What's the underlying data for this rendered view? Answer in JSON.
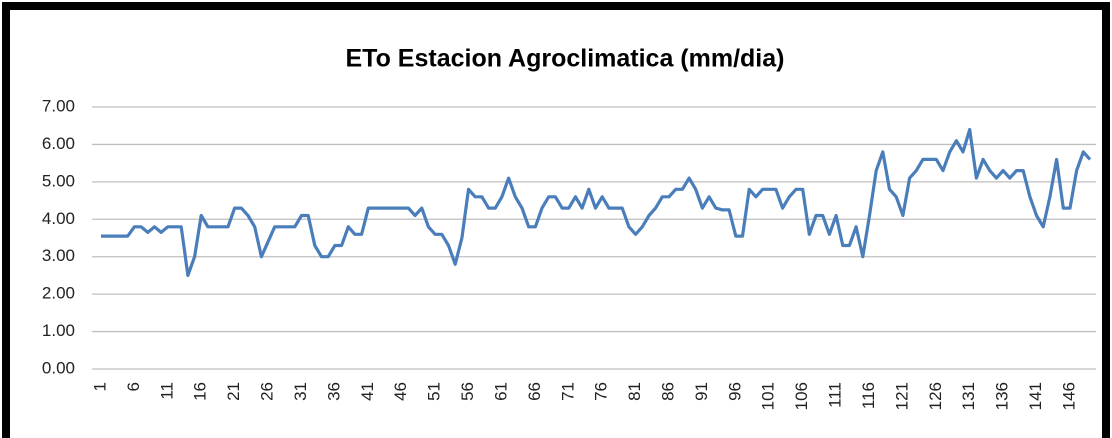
{
  "chart_data": {
    "type": "line",
    "title": "ETo Estacion Agroclimatica (mm/dia)",
    "categories": [
      "1",
      null,
      null,
      null,
      null,
      "6",
      null,
      null,
      null,
      null,
      "11",
      null,
      null,
      null,
      null,
      "16",
      null,
      null,
      null,
      null,
      "21",
      null,
      null,
      null,
      null,
      "26",
      null,
      null,
      null,
      null,
      "31",
      null,
      null,
      null,
      null,
      "36",
      null,
      null,
      null,
      null,
      "41",
      null,
      null,
      null,
      null,
      "46",
      null,
      null,
      null,
      null,
      "51",
      null,
      null,
      null,
      null,
      "56",
      null,
      null,
      null,
      null,
      "61",
      null,
      null,
      null,
      null,
      "66",
      null,
      null,
      null,
      null,
      "71",
      null,
      null,
      null,
      null,
      "76",
      null,
      null,
      null,
      null,
      "81",
      null,
      null,
      null,
      null,
      "86",
      null,
      null,
      null,
      null,
      "91",
      null,
      null,
      null,
      null,
      "96",
      null,
      null,
      null,
      null,
      "101",
      null,
      null,
      null,
      null,
      "106",
      null,
      null,
      null,
      null,
      "111",
      null,
      null,
      null,
      null,
      "116",
      null,
      null,
      null,
      null,
      "121",
      null,
      null,
      null,
      null,
      "126",
      null,
      null,
      null,
      null,
      "131",
      null,
      null,
      null,
      null,
      "136",
      null,
      null,
      null,
      null,
      "141",
      null,
      null,
      null,
      null,
      "146",
      null,
      null,
      null
    ],
    "series": [
      {
        "color": "#4a7ebb",
        "values": [
          3.55,
          3.55,
          3.55,
          3.55,
          3.55,
          3.8,
          3.8,
          3.65,
          3.8,
          3.65,
          3.8,
          3.8,
          3.8,
          2.5,
          3.0,
          4.1,
          3.8,
          3.8,
          3.8,
          3.8,
          4.3,
          4.3,
          4.1,
          3.8,
          3.0,
          3.4,
          3.8,
          3.8,
          3.8,
          3.8,
          4.1,
          4.1,
          3.3,
          3.0,
          3.0,
          3.3,
          3.3,
          3.8,
          3.6,
          3.6,
          4.3,
          4.3,
          4.3,
          4.3,
          4.3,
          4.3,
          4.3,
          4.1,
          4.3,
          3.8,
          3.6,
          3.6,
          3.3,
          2.8,
          3.5,
          4.8,
          4.6,
          4.6,
          4.3,
          4.3,
          4.6,
          5.1,
          4.6,
          4.3,
          3.8,
          3.8,
          4.3,
          4.6,
          4.6,
          4.3,
          4.3,
          4.6,
          4.3,
          4.8,
          4.3,
          4.6,
          4.3,
          4.3,
          4.3,
          3.8,
          3.6,
          3.8,
          4.1,
          4.3,
          4.6,
          4.6,
          4.8,
          4.8,
          5.1,
          4.8,
          4.3,
          4.6,
          4.3,
          4.25,
          4.25,
          3.55,
          3.55,
          4.8,
          4.6,
          4.8,
          4.8,
          4.8,
          4.3,
          4.6,
          4.8,
          4.8,
          3.6,
          4.1,
          4.1,
          3.6,
          4.1,
          3.3,
          3.3,
          3.8,
          3.0,
          4.1,
          5.3,
          5.8,
          4.8,
          4.6,
          4.1,
          5.1,
          5.3,
          5.6,
          5.6,
          5.6,
          5.3,
          5.8,
          6.1,
          5.8,
          6.4,
          5.1,
          5.6,
          5.3,
          5.1,
          5.3,
          5.1,
          5.3,
          5.3,
          4.6,
          4.1,
          3.8,
          4.6,
          5.6,
          4.3,
          4.3,
          5.3,
          5.8,
          5.6
        ]
      }
    ],
    "ylim": [
      0,
      7
    ],
    "yticks": [
      {
        "value": 0,
        "label": "0.00"
      },
      {
        "value": 1,
        "label": "1.00"
      },
      {
        "value": 2,
        "label": "2.00"
      },
      {
        "value": 3,
        "label": "3.00"
      },
      {
        "value": 4,
        "label": "4.00"
      },
      {
        "value": 5,
        "label": "5.00"
      },
      {
        "value": 6,
        "label": "6.00"
      },
      {
        "value": 7,
        "label": "7.00"
      }
    ],
    "grid": true
  }
}
